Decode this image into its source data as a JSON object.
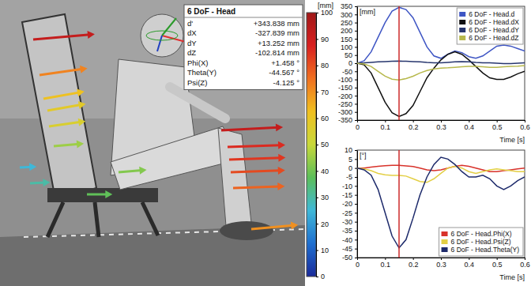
{
  "chart_data": [
    {
      "type": "vector_field",
      "info_box": {
        "title": "6 DoF - Head",
        "rows": [
          [
            "d'",
            "+343.838 mm"
          ],
          [
            "dX",
            "-327.839 mm"
          ],
          [
            "dY",
            "+13.252 mm"
          ],
          [
            "dZ",
            "-102.814 mm"
          ],
          [
            "Phi(X)",
            "+1.458 °"
          ],
          [
            "Theta(Y)",
            "-44.567 °"
          ],
          [
            "Psi(Z)",
            "-4.125 °"
          ]
        ]
      },
      "values": [
        92,
        72,
        62,
        58,
        55,
        45,
        25,
        30,
        42,
        38,
        92,
        86,
        84,
        81,
        77,
        70
      ],
      "colorbar": {
        "title": "[mm]",
        "range": [
          0,
          100
        ],
        "ticks": [
          0,
          10,
          20,
          30,
          40,
          50,
          60,
          70,
          80,
          90,
          100
        ]
      }
    },
    {
      "type": "line",
      "y_label": "[mm]",
      "x_label": "Time [s]",
      "x": [
        0,
        0.025,
        0.05,
        0.075,
        0.1,
        0.125,
        0.15,
        0.175,
        0.2,
        0.225,
        0.25,
        0.275,
        0.3,
        0.325,
        0.35,
        0.375,
        0.4,
        0.425,
        0.45,
        0.475,
        0.5,
        0.525,
        0.55,
        0.575,
        0.6
      ],
      "xlim": [
        0,
        0.6
      ],
      "xticks": [
        0,
        0.1,
        0.2,
        0.3,
        0.4,
        0.5,
        0.6
      ],
      "ylim": [
        -350,
        350
      ],
      "yticks": [
        -350,
        -300,
        -250,
        -200,
        -150,
        -100,
        -50,
        0,
        50,
        100,
        150,
        200,
        250,
        300,
        350
      ],
      "grid": false,
      "legend": "upper right",
      "cursor": 0.15,
      "series": [
        {
          "name": "6 DoF - Head.d",
          "color": "#3f56c4",
          "values": [
            0,
            15,
            70,
            160,
            250,
            320,
            344,
            330,
            280,
            190,
            100,
            45,
            30,
            55,
            75,
            65,
            40,
            30,
            45,
            75,
            105,
            112,
            105,
            90,
            75
          ]
        },
        {
          "name": "6 DoF - Head.dX",
          "color": "#111111",
          "values": [
            0,
            -10,
            -60,
            -150,
            -240,
            -305,
            -328,
            -310,
            -260,
            -175,
            -90,
            -30,
            20,
            55,
            70,
            55,
            20,
            -20,
            -60,
            -90,
            -100,
            -100,
            -85,
            -65,
            -50
          ]
        },
        {
          "name": "6 DoF - Head.dY",
          "color": "#27366e",
          "values": [
            0,
            2,
            5,
            8,
            10,
            12,
            13,
            12,
            10,
            8,
            5,
            3,
            2,
            5,
            8,
            10,
            8,
            5,
            3,
            2,
            0,
            -2,
            -2,
            0,
            2
          ]
        },
        {
          "name": "6 DoF - Head.dZ",
          "color": "#b7b84c",
          "values": [
            0,
            -5,
            -20,
            -50,
            -80,
            -98,
            -103,
            -95,
            -80,
            -60,
            -45,
            -35,
            -30,
            -28,
            -25,
            -22,
            -20,
            -20,
            -22,
            -25,
            -25,
            -22,
            -20,
            -18,
            -15
          ]
        }
      ]
    },
    {
      "type": "line",
      "y_label": "[°]",
      "x_label": "Time [s]",
      "x": [
        0,
        0.025,
        0.05,
        0.075,
        0.1,
        0.125,
        0.15,
        0.175,
        0.2,
        0.225,
        0.25,
        0.275,
        0.3,
        0.325,
        0.35,
        0.375,
        0.4,
        0.425,
        0.45,
        0.475,
        0.5,
        0.525,
        0.55,
        0.575,
        0.6
      ],
      "xlim": [
        0,
        0.6
      ],
      "xticks": [
        0,
        0.1,
        0.2,
        0.3,
        0.4,
        0.5,
        0.6
      ],
      "ylim": [
        -50,
        10
      ],
      "yticks": [
        -50,
        -45,
        -40,
        -35,
        -30,
        -25,
        -20,
        -15,
        -10,
        -5,
        0,
        5,
        10
      ],
      "grid": false,
      "legend": "lower right",
      "cursor": 0.15,
      "series": [
        {
          "name": "6 DoF - Head.Phi(X)",
          "color": "#d8322a",
          "values": [
            0,
            0,
            0.5,
            1,
            1.3,
            1.5,
            1.5,
            1.2,
            0.8,
            0,
            -1,
            -1.5,
            -1,
            0,
            1,
            1.5,
            1,
            0,
            -1,
            -2,
            -2,
            -1.5,
            -1,
            -0.5,
            0
          ]
        },
        {
          "name": "6 DoF - Head.Psi(Z)",
          "color": "#e3cf45",
          "values": [
            0,
            -0.5,
            -1.5,
            -3,
            -3.8,
            -4.1,
            -4.1,
            -4.5,
            -6,
            -7.5,
            -8,
            -6,
            -3,
            0,
            1,
            0,
            -2,
            -3,
            -2,
            -1,
            -0.5,
            -1,
            -1.5,
            -2,
            -2
          ]
        },
        {
          "name": "6 DoF - Head.Theta(Y)",
          "color": "#1d2a6b",
          "values": [
            0,
            -1,
            -4,
            -12,
            -25,
            -38,
            -44.6,
            -40,
            -28,
            -15,
            -5,
            2,
            6,
            5,
            2,
            -2,
            -5,
            -5,
            -4,
            -6,
            -10,
            -12,
            -10,
            -7,
            -5
          ]
        }
      ]
    }
  ]
}
